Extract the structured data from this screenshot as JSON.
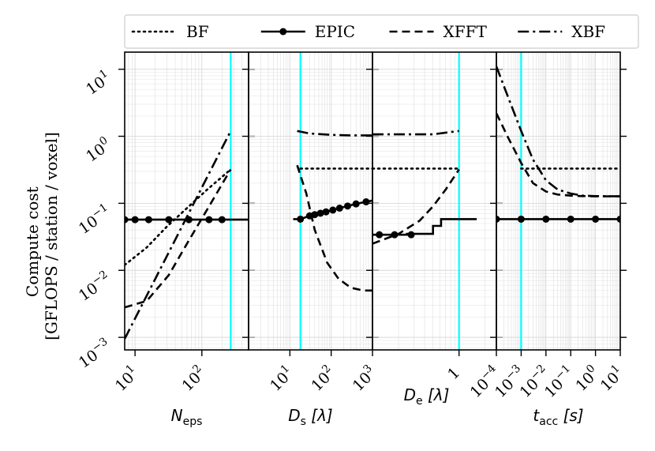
{
  "legend": {
    "placement": "top",
    "entries": [
      {
        "label": "BF",
        "style": "dotted"
      },
      {
        "label": "EPIC",
        "style": "solid-marker"
      },
      {
        "label": "XFFT",
        "style": "dashed"
      },
      {
        "label": "XBF",
        "style": "dashdot"
      }
    ]
  },
  "ylabel_line1": "Compute cost",
  "ylabel_line2": "[GFLOPS / station / voxel]",
  "colors": {
    "line": "#000000",
    "marker": "#000000",
    "vline": "#00ffff",
    "grid": "#d9d9d9"
  },
  "chart_data": {
    "type": "line",
    "yscale": "log",
    "ylim": [
      0.00065,
      18
    ],
    "yticks": [
      {
        "value": 0.001,
        "base": "10",
        "exp": "−3"
      },
      {
        "value": 0.01,
        "base": "10",
        "exp": "−2"
      },
      {
        "value": 0.1,
        "base": "10",
        "exp": "−1"
      },
      {
        "value": 1,
        "base": "10",
        "exp": "0"
      },
      {
        "value": 10,
        "base": "10",
        "exp": "1"
      }
    ],
    "grid": true,
    "panels": [
      {
        "xlabel_main": "N",
        "xlabel_sub": "eps",
        "xlabel_unit": "",
        "xscale": "log",
        "xlim": [
          7,
          500
        ],
        "xticks": [
          {
            "value": 10,
            "base": "10",
            "exp": "1"
          },
          {
            "value": 100,
            "base": "10",
            "exp": "2"
          }
        ],
        "vline": 270,
        "series": [
          {
            "name": "BF",
            "style": "dotted",
            "x": [
              7,
              15,
              30,
              60,
              120,
              270
            ],
            "y": [
              0.012,
              0.022,
              0.045,
              0.085,
              0.16,
              0.32
            ]
          },
          {
            "name": "EPIC",
            "style": "solid-marker",
            "x": [
              7,
              500
            ],
            "y": [
              0.057,
              0.057
            ],
            "markers": [
              7,
              10,
              16,
              32,
              64,
              128,
              200
            ],
            "markers_y": 0.057
          },
          {
            "name": "XFFT",
            "style": "dashed",
            "x": [
              7,
              15,
              32,
              64,
              128,
              270
            ],
            "y": [
              0.0028,
              0.0035,
              0.0085,
              0.028,
              0.09,
              0.32
            ]
          },
          {
            "name": "XBF",
            "style": "dashdot",
            "x": [
              7,
              270
            ],
            "y": [
              0.00095,
              1.2
            ]
          }
        ]
      },
      {
        "xlabel_main": "D",
        "xlabel_sub": "s",
        "xlabel_unit": "[λ]",
        "xscale": "log",
        "xlim": [
          1,
          1000
        ],
        "xticks": [
          {
            "value": 10,
            "base": "10",
            "exp": "1"
          },
          {
            "value": 100,
            "base": "10",
            "exp": "2"
          },
          {
            "value": 1000,
            "base": "10",
            "exp": "3"
          }
        ],
        "vline": 18,
        "series": [
          {
            "name": "BF",
            "style": "dotted",
            "x": [
              18,
              1000
            ],
            "y": [
              0.33,
              0.33
            ]
          },
          {
            "name": "EPIC",
            "style": "solid-marker",
            "x": [
              12,
              18,
              30,
              50,
              100,
              200,
              400,
              1000
            ],
            "y": [
              0.058,
              0.058,
              0.065,
              0.07,
              0.078,
              0.088,
              0.098,
              0.11
            ],
            "markers": [
              18,
              30,
              40,
              55,
              75,
              110,
              160,
              250,
              400,
              700
            ],
            "markers_y": null
          },
          {
            "name": "XFFT",
            "style": "dashed",
            "x": [
              15,
              25,
              40,
              80,
              150,
              300,
              600,
              1000
            ],
            "y": [
              0.37,
              0.14,
              0.04,
              0.013,
              0.0075,
              0.0055,
              0.005,
              0.005
            ]
          },
          {
            "name": "XBF",
            "style": "dashdot",
            "x": [
              15,
              30,
              100,
              300,
              1000
            ],
            "y": [
              1.2,
              1.1,
              1.05,
              1.03,
              1.03
            ]
          }
        ]
      },
      {
        "xlabel_main": "D",
        "xlabel_sub": "e",
        "xlabel_unit": "[λ]",
        "xscale": "log",
        "xlim": [
          0.1,
          2.7
        ],
        "xticks": [
          {
            "value": 1,
            "label": "1"
          }
        ],
        "vline": 1,
        "series": [
          {
            "name": "BF",
            "style": "dotted",
            "x": [
              0.1,
              1
            ],
            "y": [
              0.33,
              0.33
            ]
          },
          {
            "name": "EPIC",
            "style": "solid-marker",
            "x": [
              0.1,
              0.25,
              0.25,
              0.5,
              0.5,
              0.62,
              0.62,
              1.6
            ],
            "y": [
              0.034,
              0.034,
              0.035,
              0.035,
              0.046,
              0.046,
              0.058,
              0.058
            ],
            "markers": [
              0.12,
              0.18,
              0.28
            ],
            "markers_y": 0.034
          },
          {
            "name": "XFFT",
            "style": "dashed",
            "x": [
              0.1,
              0.2,
              0.35,
              0.5,
              0.7,
              1
            ],
            "y": [
              0.025,
              0.035,
              0.055,
              0.09,
              0.16,
              0.32
            ]
          },
          {
            "name": "XBF",
            "style": "dashdot",
            "x": [
              0.1,
              0.5,
              1
            ],
            "y": [
              1.07,
              1.07,
              1.2
            ]
          }
        ]
      },
      {
        "xlabel_main": "t",
        "xlabel_sub": "acc",
        "xlabel_unit": "[s]",
        "xscale": "log",
        "xlim": [
          0.0001,
          10
        ],
        "xticks": [
          {
            "value": 0.0001,
            "base": "10",
            "exp": "−4"
          },
          {
            "value": 0.001,
            "base": "10",
            "exp": "−3"
          },
          {
            "value": 0.01,
            "base": "10",
            "exp": "−2"
          },
          {
            "value": 0.1,
            "base": "10",
            "exp": "−1"
          },
          {
            "value": 1,
            "base": "10",
            "exp": "0"
          },
          {
            "value": 10,
            "base": "10",
            "exp": "1"
          }
        ],
        "vline": 0.001,
        "series": [
          {
            "name": "BF",
            "style": "dotted",
            "x": [
              0.001,
              10
            ],
            "y": [
              0.33,
              0.33
            ]
          },
          {
            "name": "EPIC",
            "style": "solid-marker",
            "x": [
              0.0001,
              10
            ],
            "y": [
              0.058,
              0.058
            ],
            "markers": [
              0.0001,
              0.001,
              0.01,
              0.1,
              1,
              10
            ],
            "markers_y": 0.058
          },
          {
            "name": "XFFT",
            "style": "dashed",
            "x": [
              0.0001,
              0.0003,
              0.001,
              0.003,
              0.01,
              0.03,
              0.1,
              0.3,
              1,
              10
            ],
            "y": [
              2.2,
              0.95,
              0.4,
              0.2,
              0.15,
              0.135,
              0.13,
              0.128,
              0.127,
              0.127
            ]
          },
          {
            "name": "XBF",
            "style": "dashdot",
            "x": [
              0.0001,
              0.0003,
              0.001,
              0.003,
              0.01,
              0.03,
              0.1,
              0.3,
              1,
              10
            ],
            "y": [
              11,
              3.8,
              1.2,
              0.45,
              0.22,
              0.16,
              0.14,
              0.13,
              0.128,
              0.127
            ]
          }
        ]
      }
    ]
  }
}
